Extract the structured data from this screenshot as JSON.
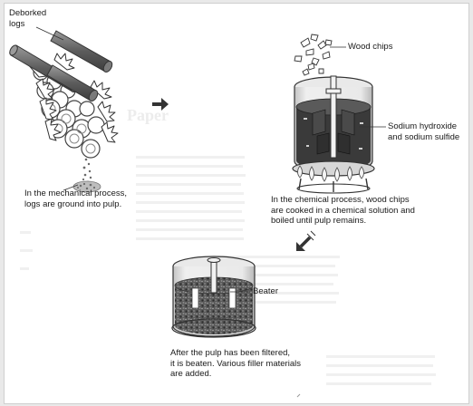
{
  "diagram": {
    "labels": {
      "deborked_logs": "Deborked\nlogs",
      "mechanical_caption": "In the mechanical process,\nlogs are ground into pulp.",
      "wood_chips": "Wood chips",
      "chemicals": "Sodium hydroxide\nand sodium sulfide",
      "chemical_caption": "In the chemical process, wood chips\nare cooked in a chemical solution and\nboiled until pulp remains.",
      "beater": "Beater",
      "beater_caption": "After the pulp has been filtered,\nit is beaten. Various filler materials\nare added."
    },
    "background_heading": "Paper",
    "colors": {
      "log_gray": "#6f6f6f",
      "solution_dark": "#3a3a3a",
      "pulp": "#4a4a4a",
      "flame": "#9a9a9a"
    }
  }
}
